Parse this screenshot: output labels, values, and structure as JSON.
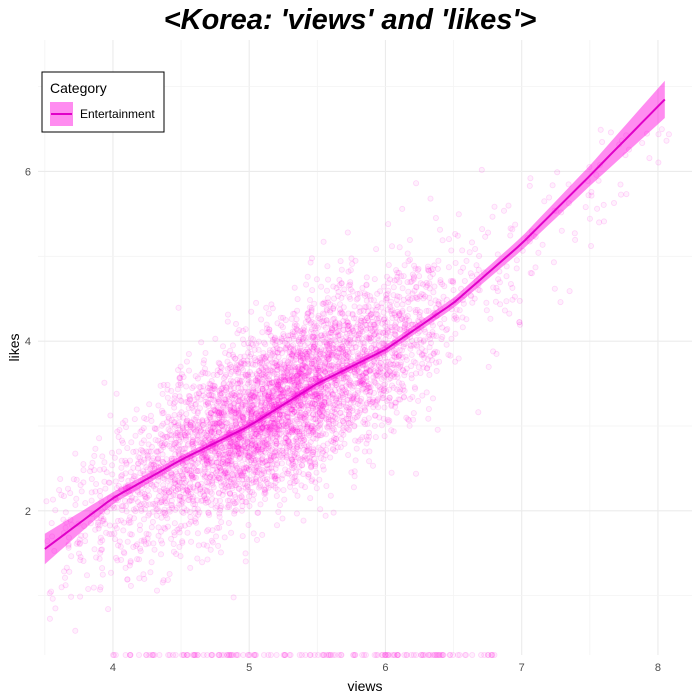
{
  "chart_data": {
    "type": "scatter",
    "title": "<Korea: 'views' and 'likes'>",
    "xlabel": "views",
    "ylabel": "likes",
    "xlim": [
      3.45,
      8.25
    ],
    "ylim": [
      0.3,
      7.55
    ],
    "x_ticks": [
      4,
      5,
      6,
      7,
      8
    ],
    "y_ticks": [
      2,
      4,
      6
    ],
    "grid": true,
    "legend": {
      "title": "Category",
      "placement": "top-left",
      "entries": [
        "Entertainment"
      ]
    },
    "series": [
      {
        "name": "Entertainment",
        "color": "#ff00dd",
        "point_alpha": 0.15,
        "scatter_summary": {
          "n_points_approx": 6000,
          "x_mean_approx": 5.2,
          "y_mean_approx": 3.1,
          "x_range": [
            3.5,
            8.1
          ],
          "y_range": [
            0.3,
            6.5
          ],
          "zero_likes_row_x_range": [
            4.0,
            6.8
          ]
        },
        "smooth_fit": {
          "method": "loess",
          "x": [
            3.5,
            4.0,
            4.5,
            5.0,
            5.5,
            6.0,
            6.5,
            7.0,
            7.5,
            8.05
          ],
          "y": [
            1.55,
            2.15,
            2.6,
            3.0,
            3.5,
            3.9,
            4.45,
            5.15,
            5.95,
            6.85
          ],
          "ci_halfwidth": [
            0.18,
            0.07,
            0.05,
            0.04,
            0.04,
            0.05,
            0.06,
            0.08,
            0.12,
            0.22
          ]
        }
      }
    ]
  }
}
